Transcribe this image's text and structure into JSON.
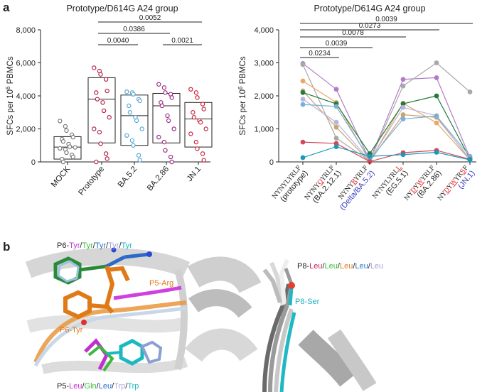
{
  "panel_a_label": "a",
  "panel_b_label": "b",
  "chart_data": [
    {
      "type": "scatter",
      "title": "Prototype/D614G A24 group",
      "ylabel": "SFCs per 10^6 PBMCs",
      "ylim": [
        0,
        8000
      ],
      "yticks": [
        "0",
        "2,000",
        "4,000",
        "6,000",
        "8,000"
      ],
      "categories": [
        "MOCK",
        "Prototype",
        "BA.5.2",
        "BA.2.86",
        "JN.1"
      ],
      "colors": [
        "#7a7a7a",
        "#b5234a",
        "#5aaad8",
        "#9e2b86",
        "#c9283e"
      ],
      "boxes": [
        {
          "low": 170,
          "mid": 900,
          "high": 1530
        },
        {
          "low": 1150,
          "mid": 3800,
          "high": 5100
        },
        {
          "low": 1000,
          "mid": 2800,
          "high": 4050
        },
        {
          "low": 1150,
          "mid": 3400,
          "high": 4150
        },
        {
          "low": 900,
          "mid": 2600,
          "high": 3600
        }
      ],
      "points": [
        [
          2480,
          2150,
          1900,
          1640,
          1500,
          1380,
          1240,
          1080,
          920,
          880,
          820,
          760,
          560,
          420,
          300,
          170,
          0
        ],
        [
          5700,
          5500,
          5300,
          5000,
          4300,
          4200,
          3800,
          3600,
          3100,
          2700,
          2000,
          1800,
          1100,
          500,
          200,
          0
        ],
        [
          4250,
          4200,
          4100,
          3800,
          3700,
          3400,
          3000,
          2700,
          2500,
          2000,
          1600,
          1300,
          1000,
          400,
          100
        ],
        [
          4700,
          4500,
          4200,
          4100,
          3900,
          3600,
          3400,
          2800,
          2500,
          2000,
          1500,
          1200,
          700,
          300,
          0
        ],
        [
          4400,
          4200,
          3900,
          3500,
          3200,
          3000,
          2700,
          2500,
          2400,
          2000,
          1700,
          1200,
          800,
          500,
          100
        ]
      ],
      "comparisons": [
        {
          "from": 1,
          "to": 4,
          "label": "0.0052"
        },
        {
          "from": 1,
          "to": 3,
          "label": "0.0386"
        },
        {
          "from": 1,
          "to": 2,
          "label": "0.0040"
        },
        {
          "from": 3,
          "to": 4,
          "label": "0.0021"
        }
      ]
    },
    {
      "type": "line",
      "title": "Prototype/D614G A24 group",
      "ylabel": "SFCs per 10^6 PBMCs",
      "ylim": [
        0,
        4000
      ],
      "yticks": [
        "0",
        "1,000",
        "2,000",
        "3,000",
        "4,000"
      ],
      "categories": [
        {
          "seq": "NYNYLYRLF",
          "variant": "(prototype)",
          "mut": [],
          "variant_color": "#222"
        },
        {
          "seq": "NYNYQYRLF",
          "variant": "(BA.2.12.1)",
          "mut": [
            4
          ],
          "variant_color": "#222"
        },
        {
          "seq": "NYNYRYRLF",
          "variant": "(Delta/BA.5.2)",
          "mut": [
            4
          ],
          "variant_color": "#3b3bc4"
        },
        {
          "seq": "NYNYLYRLL",
          "variant": "(EG.5.1)",
          "mut": [
            8
          ],
          "variant_color": "#222"
        },
        {
          "seq": "NYDYWYRLF",
          "variant": "(BA.2.86)",
          "mut": [
            2,
            4
          ],
          "variant_color": "#222"
        },
        {
          "seq": "NYDYWYRSF",
          "variant": "(JN.1)",
          "mut": [
            2,
            4,
            7
          ],
          "variant_color": "#3b3bc4"
        }
      ],
      "series": [
        {
          "color": "#b07cc6",
          "values": [
            2980,
            2200,
            50,
            2500,
            2550,
            130
          ]
        },
        {
          "color": "#a8a8a8",
          "values": [
            2950,
            720,
            30,
            2300,
            3000,
            2120
          ]
        },
        {
          "color": "#e8a868",
          "values": [
            2450,
            1800,
            20,
            1780,
            1180,
            60
          ]
        },
        {
          "color": "#c8a474",
          "values": [
            2150,
            1050,
            10,
            1430,
            1350,
            80
          ]
        },
        {
          "color": "#237a3a",
          "values": [
            2100,
            1760,
            250,
            1760,
            2000,
            100
          ]
        },
        {
          "color": "#b8b4e0",
          "values": [
            1900,
            1200,
            40,
            1650,
            1400,
            40
          ]
        },
        {
          "color": "#7ab0d8",
          "values": [
            1740,
            1680,
            70,
            1300,
            1390,
            170
          ]
        },
        {
          "color": "#d4475a",
          "values": [
            600,
            560,
            10,
            280,
            350,
            80
          ]
        },
        {
          "color": "#1b9ab8",
          "values": [
            130,
            460,
            170,
            220,
            290,
            60
          ]
        }
      ],
      "comparisons": [
        {
          "from": 0,
          "to": 5,
          "label": "0.0039"
        },
        {
          "from": 0,
          "to": 4,
          "label": "0.0273"
        },
        {
          "from": 0,
          "to": 3,
          "label": "0.0078"
        },
        {
          "from": 0,
          "to": 2,
          "label": "0.0039"
        },
        {
          "from": 0,
          "to": 1,
          "label": "0.0234"
        }
      ]
    }
  ],
  "structure_left": {
    "top_label_prefix": "P6-",
    "top_residues": [
      {
        "text": "Tyr",
        "color": "#c03cc8"
      },
      {
        "text": "Tyr",
        "color": "#3cc03c"
      },
      {
        "text": "Tyr",
        "color": "#2a72c8"
      },
      {
        "text": "Tyr",
        "color": "#a8a0d8"
      },
      {
        "text": "Tyr",
        "color": "#1cb8c0"
      }
    ],
    "p5_arg": "P5-Arg",
    "p6_tyr": "P6-Tyr",
    "bottom_label_prefix": "P5-",
    "bottom_residues": [
      {
        "text": "Leu",
        "color": "#c030d0"
      },
      {
        "text": "Gln",
        "color": "#3cc03c"
      },
      {
        "text": "Leu",
        "color": "#2a72c8"
      },
      {
        "text": "Trp",
        "color": "#b0a8e0"
      },
      {
        "text": "Trp",
        "color": "#1cb8c0"
      }
    ]
  },
  "structure_right": {
    "top_label_prefix": "P8-",
    "top_residues": [
      {
        "text": "Leu",
        "color": "#c82060"
      },
      {
        "text": "Leu",
        "color": "#3cc03c"
      },
      {
        "text": "Leu",
        "color": "#e07818"
      },
      {
        "text": "Leu",
        "color": "#2a72c8"
      },
      {
        "text": "Leu",
        "color": "#a8a0d8"
      }
    ],
    "p8_ser": "P8-Ser"
  }
}
